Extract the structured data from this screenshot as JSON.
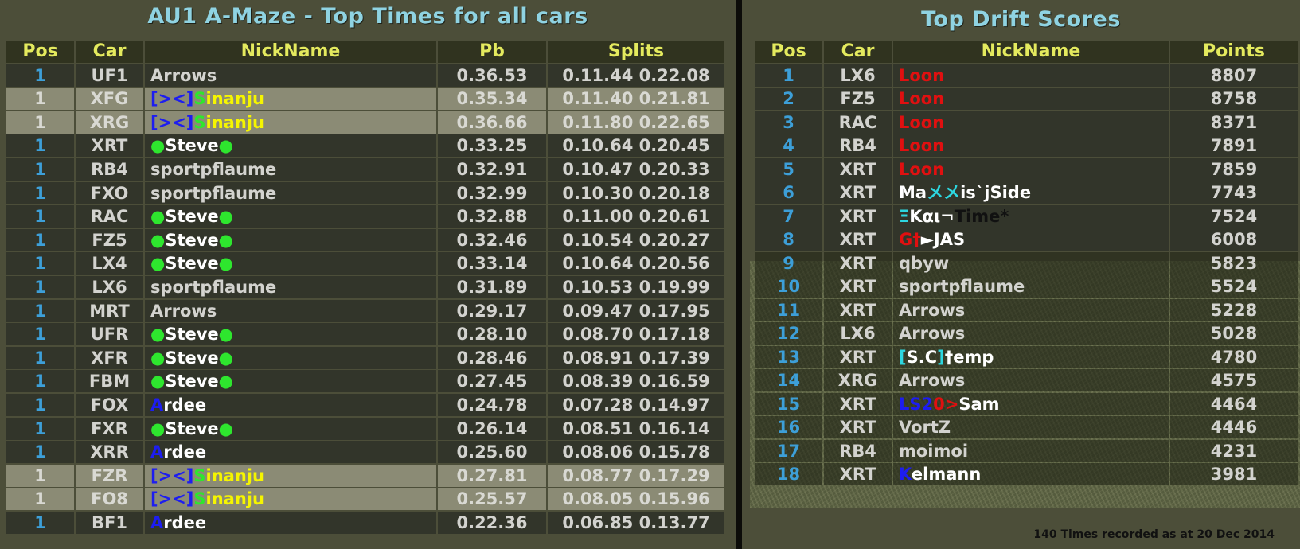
{
  "left": {
    "title": "AU1 A-Maze - Top Times for all cars",
    "headers": {
      "pos": "Pos",
      "car": "Car",
      "nick": "NickName",
      "pb": "Pb",
      "splits": "Splits"
    },
    "rows": [
      {
        "pos": "1",
        "car": "UF1",
        "nick": [
          {
            "t": "Arrows",
            "c": "#d3d3cf"
          }
        ],
        "pb": "0.36.53",
        "splits": "0.11.44  0.22.08",
        "hl": false
      },
      {
        "pos": "1",
        "car": "XFG",
        "nick": [
          {
            "t": "[><]",
            "c": "#1d1df0"
          },
          {
            "t": "S",
            "c": "#2ee62e"
          },
          {
            "t": "inanju",
            "c": "#f5f500"
          }
        ],
        "pb": "0.35.34",
        "splits": "0.11.40  0.21.81",
        "hl": true
      },
      {
        "pos": "1",
        "car": "XRG",
        "nick": [
          {
            "t": "[><]",
            "c": "#1d1df0"
          },
          {
            "t": "S",
            "c": "#2ee62e"
          },
          {
            "t": "inanju",
            "c": "#f5f500"
          }
        ],
        "pb": "0.36.66",
        "splits": "0.11.80  0.22.65",
        "hl": true
      },
      {
        "pos": "1",
        "car": "XRT",
        "nick": [
          {
            "t": "●",
            "c": "#2ee62e"
          },
          {
            "t": "Steve",
            "c": "#ffffff"
          },
          {
            "t": "●",
            "c": "#2ee62e"
          }
        ],
        "pb": "0.33.25",
        "splits": "0.10.64  0.20.45",
        "hl": false
      },
      {
        "pos": "1",
        "car": "RB4",
        "nick": [
          {
            "t": "sportpflaume",
            "c": "#d3d3cf"
          }
        ],
        "pb": "0.32.91",
        "splits": "0.10.47  0.20.33",
        "hl": false
      },
      {
        "pos": "1",
        "car": "FXO",
        "nick": [
          {
            "t": "sportpflaume",
            "c": "#d3d3cf"
          }
        ],
        "pb": "0.32.99",
        "splits": "0.10.30  0.20.18",
        "hl": false
      },
      {
        "pos": "1",
        "car": "RAC",
        "nick": [
          {
            "t": "●",
            "c": "#2ee62e"
          },
          {
            "t": "Steve",
            "c": "#ffffff"
          },
          {
            "t": "●",
            "c": "#2ee62e"
          }
        ],
        "pb": "0.32.88",
        "splits": "0.11.00  0.20.61",
        "hl": false
      },
      {
        "pos": "1",
        "car": "FZ5",
        "nick": [
          {
            "t": "●",
            "c": "#2ee62e"
          },
          {
            "t": "Steve",
            "c": "#ffffff"
          },
          {
            "t": "●",
            "c": "#2ee62e"
          }
        ],
        "pb": "0.32.46",
        "splits": "0.10.54  0.20.27",
        "hl": false
      },
      {
        "pos": "1",
        "car": "LX4",
        "nick": [
          {
            "t": "●",
            "c": "#2ee62e"
          },
          {
            "t": "Steve",
            "c": "#ffffff"
          },
          {
            "t": "●",
            "c": "#2ee62e"
          }
        ],
        "pb": "0.33.14",
        "splits": "0.10.64  0.20.56",
        "hl": false
      },
      {
        "pos": "1",
        "car": "LX6",
        "nick": [
          {
            "t": "sportpflaume",
            "c": "#d3d3cf"
          }
        ],
        "pb": "0.31.89",
        "splits": "0.10.53  0.19.99",
        "hl": false
      },
      {
        "pos": "1",
        "car": "MRT",
        "nick": [
          {
            "t": "Arrows",
            "c": "#d3d3cf"
          }
        ],
        "pb": "0.29.17",
        "splits": "0.09.47  0.17.95",
        "hl": false
      },
      {
        "pos": "1",
        "car": "UFR",
        "nick": [
          {
            "t": "●",
            "c": "#2ee62e"
          },
          {
            "t": "Steve",
            "c": "#ffffff"
          },
          {
            "t": "●",
            "c": "#2ee62e"
          }
        ],
        "pb": "0.28.10",
        "splits": "0.08.70  0.17.18",
        "hl": false
      },
      {
        "pos": "1",
        "car": "XFR",
        "nick": [
          {
            "t": "●",
            "c": "#2ee62e"
          },
          {
            "t": "Steve",
            "c": "#ffffff"
          },
          {
            "t": "●",
            "c": "#2ee62e"
          }
        ],
        "pb": "0.28.46",
        "splits": "0.08.91  0.17.39",
        "hl": false
      },
      {
        "pos": "1",
        "car": "FBM",
        "nick": [
          {
            "t": "●",
            "c": "#2ee62e"
          },
          {
            "t": "Steve",
            "c": "#ffffff"
          },
          {
            "t": "●",
            "c": "#2ee62e"
          }
        ],
        "pb": "0.27.45",
        "splits": "0.08.39  0.16.59",
        "hl": false
      },
      {
        "pos": "1",
        "car": "FOX",
        "nick": [
          {
            "t": "A",
            "c": "#1d1df0"
          },
          {
            "t": "rdee",
            "c": "#ffffff"
          }
        ],
        "pb": "0.24.78",
        "splits": "0.07.28  0.14.97",
        "hl": false
      },
      {
        "pos": "1",
        "car": "FXR",
        "nick": [
          {
            "t": "●",
            "c": "#2ee62e"
          },
          {
            "t": "Steve",
            "c": "#ffffff"
          },
          {
            "t": "●",
            "c": "#2ee62e"
          }
        ],
        "pb": "0.26.14",
        "splits": "0.08.51  0.16.14",
        "hl": false
      },
      {
        "pos": "1",
        "car": "XRR",
        "nick": [
          {
            "t": "A",
            "c": "#1d1df0"
          },
          {
            "t": "rdee",
            "c": "#ffffff"
          }
        ],
        "pb": "0.25.60",
        "splits": "0.08.06  0.15.78",
        "hl": false
      },
      {
        "pos": "1",
        "car": "FZR",
        "nick": [
          {
            "t": "[><]",
            "c": "#1d1df0"
          },
          {
            "t": "S",
            "c": "#2ee62e"
          },
          {
            "t": "inanju",
            "c": "#f5f500"
          }
        ],
        "pb": "0.27.81",
        "splits": "0.08.77  0.17.29",
        "hl": true
      },
      {
        "pos": "1",
        "car": "FO8",
        "nick": [
          {
            "t": "[><]",
            "c": "#1d1df0"
          },
          {
            "t": "S",
            "c": "#2ee62e"
          },
          {
            "t": "inanju",
            "c": "#f5f500"
          }
        ],
        "pb": "0.25.57",
        "splits": "0.08.05  0.15.96",
        "hl": true
      },
      {
        "pos": "1",
        "car": "BF1",
        "nick": [
          {
            "t": "A",
            "c": "#1d1df0"
          },
          {
            "t": "rdee",
            "c": "#ffffff"
          }
        ],
        "pb": "0.22.36",
        "splits": "0.06.85  0.13.77",
        "hl": false
      }
    ]
  },
  "right": {
    "title": "Top Drift Scores",
    "headers": {
      "pos": "Pos",
      "car": "Car",
      "nick": "NickName",
      "points": "Points"
    },
    "rows": [
      {
        "pos": "1",
        "car": "LX6",
        "nick": [
          {
            "t": "Loon",
            "c": "#e01010"
          }
        ],
        "points": "8807"
      },
      {
        "pos": "2",
        "car": "FZ5",
        "nick": [
          {
            "t": "Loon",
            "c": "#e01010"
          }
        ],
        "points": "8758"
      },
      {
        "pos": "3",
        "car": "RAC",
        "nick": [
          {
            "t": "Loon",
            "c": "#e01010"
          }
        ],
        "points": "8371"
      },
      {
        "pos": "4",
        "car": "RB4",
        "nick": [
          {
            "t": "Loon",
            "c": "#e01010"
          }
        ],
        "points": "7891"
      },
      {
        "pos": "5",
        "car": "XRT",
        "nick": [
          {
            "t": "Loon",
            "c": "#e01010"
          }
        ],
        "points": "7859"
      },
      {
        "pos": "6",
        "car": "XRT",
        "nick": [
          {
            "t": "Ma",
            "c": "#ffffff"
          },
          {
            "t": "メメ",
            "c": "#2dd7e0"
          },
          {
            "t": "is`jSide",
            "c": "#ffffff"
          }
        ],
        "points": "7743"
      },
      {
        "pos": "7",
        "car": "XRT",
        "nick": [
          {
            "t": "Ξ",
            "c": "#2dd7e0"
          },
          {
            "t": "Kαι¬",
            "c": "#ffffff"
          },
          {
            "t": "Time",
            "c": "#111111"
          },
          {
            "t": "*",
            "c": "#111111"
          }
        ],
        "points": "7524"
      },
      {
        "pos": "8",
        "car": "XRT",
        "nick": [
          {
            "t": "G†",
            "c": "#e01010"
          },
          {
            "t": "►JAS",
            "c": "#ffffff"
          }
        ],
        "points": "6008"
      },
      {
        "pos": "9",
        "car": "XRT",
        "nick": [
          {
            "t": "qbyw",
            "c": "#d3d3cf"
          }
        ],
        "points": "5823"
      },
      {
        "pos": "10",
        "car": "XRT",
        "nick": [
          {
            "t": "sportpflaume",
            "c": "#d3d3cf"
          }
        ],
        "points": "5524"
      },
      {
        "pos": "11",
        "car": "XRT",
        "nick": [
          {
            "t": "Arrows",
            "c": "#d3d3cf"
          }
        ],
        "points": "5228"
      },
      {
        "pos": "12",
        "car": "LX6",
        "nick": [
          {
            "t": "Arrows",
            "c": "#d3d3cf"
          }
        ],
        "points": "5028"
      },
      {
        "pos": "13",
        "car": "XRT",
        "nick": [
          {
            "t": "[",
            "c": "#2dd7e0"
          },
          {
            "t": "S.C",
            "c": "#ffffff"
          },
          {
            "t": "]",
            "c": "#2dd7e0"
          },
          {
            "t": "†emp",
            "c": "#ffffff"
          }
        ],
        "points": "4780"
      },
      {
        "pos": "14",
        "car": "XRG",
        "nick": [
          {
            "t": "Arrows",
            "c": "#d3d3cf"
          }
        ],
        "points": "4575"
      },
      {
        "pos": "15",
        "car": "XRT",
        "nick": [
          {
            "t": "LS2",
            "c": "#1d1df0"
          },
          {
            "t": "0>",
            "c": "#e01010"
          },
          {
            "t": "Sam",
            "c": "#ffffff"
          }
        ],
        "points": "4464"
      },
      {
        "pos": "16",
        "car": "XRT",
        "nick": [
          {
            "t": "VortZ",
            "c": "#d3d3cf"
          }
        ],
        "points": "4446"
      },
      {
        "pos": "17",
        "car": "RB4",
        "nick": [
          {
            "t": "moimoi",
            "c": "#d3d3cf"
          }
        ],
        "points": "4231"
      },
      {
        "pos": "18",
        "car": "XRT",
        "nick": [
          {
            "t": "K",
            "c": "#1d1df0"
          },
          {
            "t": "elmann",
            "c": "#ffffff"
          }
        ],
        "points": "3981"
      }
    ],
    "footer": "140 Times recorded as at 20 Dec 2014"
  }
}
